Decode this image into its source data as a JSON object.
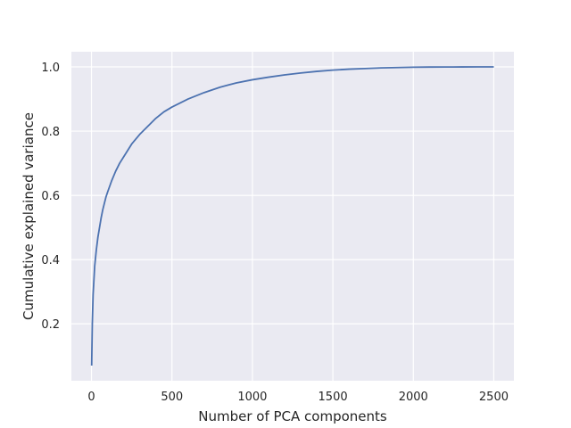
{
  "chart_data": {
    "type": "line",
    "title": "",
    "xlabel": "Number of PCA components",
    "ylabel": "Cumulative explained variance",
    "xlim": [
      -125,
      2625
    ],
    "ylim": [
      0.0227,
      1.0473
    ],
    "grid": true,
    "xticks": [
      0,
      500,
      1000,
      1500,
      2000,
      2500
    ],
    "xtick_labels": [
      "0",
      "500",
      "1000",
      "1500",
      "2000",
      "2500"
    ],
    "yticks": [
      0.2,
      0.4,
      0.6,
      0.8,
      1.0
    ],
    "ytick_labels": [
      "0.2",
      "0.4",
      "0.6",
      "0.8",
      "1.0"
    ],
    "series": [
      {
        "name": "cumulative explained variance",
        "color": "#4c72b0",
        "x": [
          1,
          5,
          10,
          20,
          30,
          40,
          50,
          60,
          70,
          80,
          90,
          100,
          125,
          150,
          175,
          200,
          250,
          300,
          350,
          400,
          450,
          500,
          600,
          700,
          800,
          900,
          1000,
          1100,
          1200,
          1300,
          1400,
          1500,
          1600,
          1700,
          1800,
          1900,
          2000,
          2100,
          2200,
          2300,
          2400,
          2500
        ],
        "y": [
          0.07,
          0.2,
          0.29,
          0.38,
          0.43,
          0.47,
          0.5,
          0.53,
          0.555,
          0.575,
          0.595,
          0.61,
          0.645,
          0.675,
          0.7,
          0.72,
          0.76,
          0.79,
          0.815,
          0.84,
          0.86,
          0.875,
          0.9,
          0.92,
          0.937,
          0.95,
          0.96,
          0.968,
          0.975,
          0.981,
          0.986,
          0.99,
          0.993,
          0.995,
          0.997,
          0.998,
          0.999,
          0.9995,
          0.9998,
          0.9999,
          1.0,
          1.0
        ]
      }
    ]
  },
  "colors": {
    "plot_background": "#eaeaf2",
    "grid": "#ffffff",
    "line": "#4c72b0",
    "text": "#262626"
  }
}
